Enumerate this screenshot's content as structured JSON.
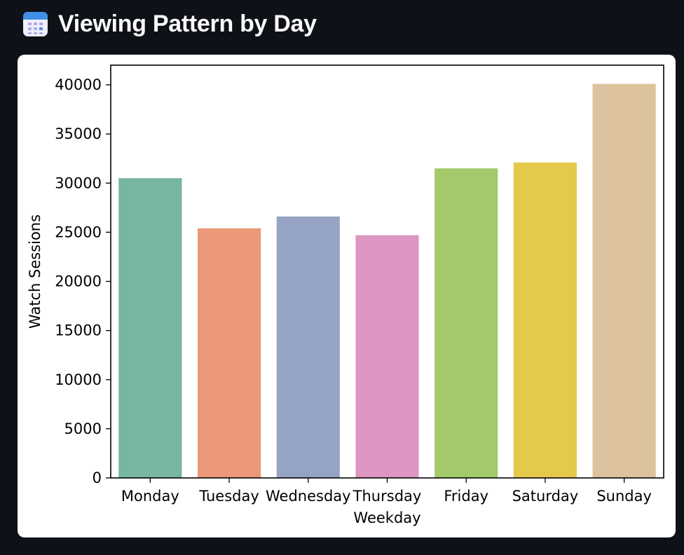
{
  "header": {
    "title": "Viewing Pattern by Day",
    "icon": "calendar-icon"
  },
  "chart_data": {
    "type": "bar",
    "xlabel": "Weekday",
    "ylabel": "Watch Sessions",
    "categories": [
      "Monday",
      "Tuesday",
      "Wednesday",
      "Thursday",
      "Friday",
      "Saturday",
      "Sunday"
    ],
    "values": [
      30500,
      25400,
      26600,
      24700,
      31500,
      32100,
      40100
    ],
    "colors": [
      "#76b6a2",
      "#ea9877",
      "#95a4c4",
      "#dd96c2",
      "#a3c96a",
      "#e4c94a",
      "#dcc39d"
    ],
    "ylim": [
      0,
      42000
    ],
    "yticks": [
      0,
      5000,
      10000,
      15000,
      20000,
      25000,
      30000,
      35000,
      40000
    ],
    "grid": false,
    "legend": "none"
  },
  "theme": {
    "page_background": "#0e1117",
    "card_background": "#ffffff",
    "title_color": "#fafafa"
  }
}
